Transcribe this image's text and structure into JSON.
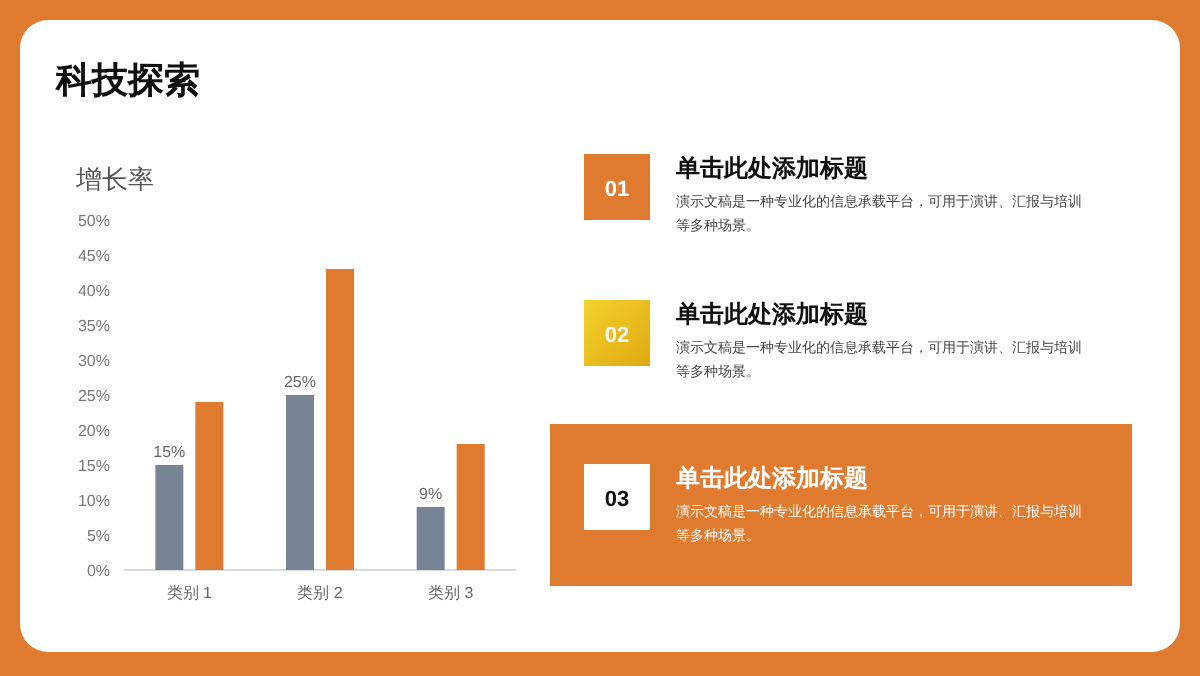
{
  "chart_data": [
    {
      "type": "bar",
      "title": "科技探索",
      "ylabel": "增长率",
      "categories": [
        "类别 1",
        "类别 2",
        "类别 3"
      ],
      "series": [
        {
          "color": "#778494",
          "values": [
            15,
            25,
            9
          ],
          "value_labels": [
            "15%",
            "25%",
            "9%"
          ]
        },
        {
          "color": "#e07a2e",
          "values": [
            24,
            43,
            18
          ]
        }
      ],
      "ylim": [
        0,
        50
      ],
      "yticks": [
        {
          "value": 0,
          "label": "0%"
        },
        {
          "value": 5,
          "label": "5%"
        },
        {
          "value": 10,
          "label": "10%"
        },
        {
          "value": 15,
          "label": "15%"
        },
        {
          "value": 20,
          "label": "20%"
        },
        {
          "value": 25,
          "label": "25%"
        },
        {
          "value": 30,
          "label": "30%"
        },
        {
          "value": 35,
          "label": "35%"
        },
        {
          "value": 40,
          "label": "40%"
        },
        {
          "value": 45,
          "label": "45%"
        },
        {
          "value": 50,
          "label": "50%"
        }
      ],
      "grid": false
    },
    {
      "type": "other",
      "annotations": [
        "01",
        "单击此处添加标题",
        "演示文稿是一种专业化的信息承载平台，可用于演讲、汇报与培训等多种场景。",
        "02",
        "单击此处添加标题",
        "演示文稿是一种专业化的信息承载平台，可用于演讲、汇报与培训等多种场景。",
        "03",
        "单击此处添加标题",
        "演示文稿是一种专业化的信息承载平台，可用于演讲、汇报与培训等多种场景。"
      ]
    }
  ]
}
